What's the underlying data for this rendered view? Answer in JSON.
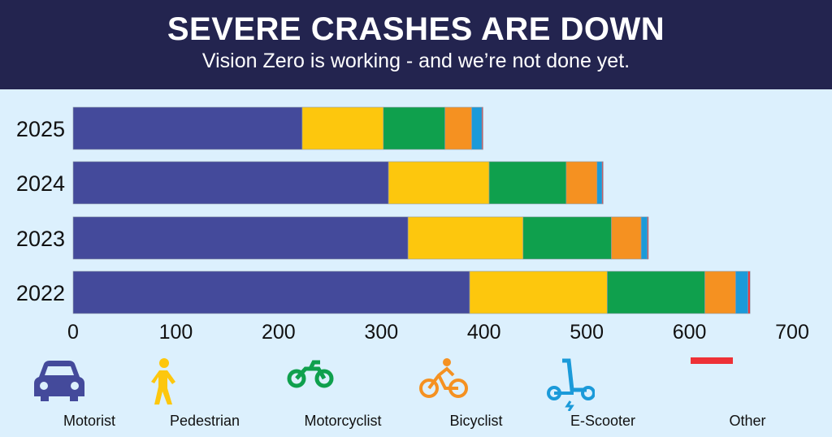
{
  "chart_data": {
    "type": "bar",
    "orientation": "horizontal",
    "stacked": true,
    "title": "SEVERE CRASHES ARE DOWN",
    "subtitle": "Vision Zero is working - and we’re not done yet.",
    "categories": [
      "2025",
      "2024",
      "2023",
      "2022"
    ],
    "series": [
      {
        "name": "Motorist",
        "color": "#444a9b",
        "values": [
          223,
          307,
          326,
          386
        ]
      },
      {
        "name": "Pedestrian",
        "color": "#fdc70d",
        "values": [
          79,
          98,
          112,
          134
        ]
      },
      {
        "name": "Motorcyclist",
        "color": "#0fa04d",
        "values": [
          60,
          75,
          86,
          95
        ]
      },
      {
        "name": "Bicyclist",
        "color": "#f59121",
        "values": [
          26,
          30,
          29,
          30
        ]
      },
      {
        "name": "E-Scooter",
        "color": "#1b9ad9",
        "values": [
          10,
          5,
          6,
          12
        ]
      },
      {
        "name": "Other",
        "color": "#ee3137",
        "values": [
          1,
          1,
          1,
          2
        ]
      }
    ],
    "xlim": [
      0,
      700
    ],
    "xticks": [
      "0",
      "100",
      "200",
      "300",
      "400",
      "500",
      "600",
      "700"
    ],
    "grid": false,
    "legend": "bottom"
  }
}
